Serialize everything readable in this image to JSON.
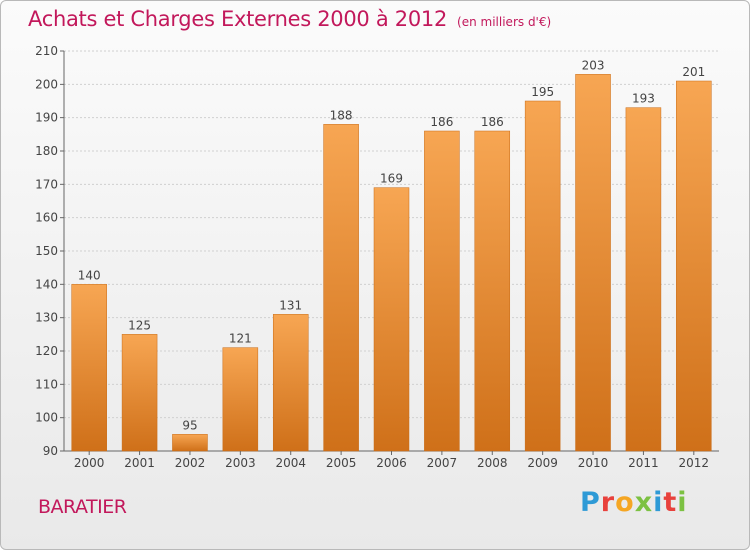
{
  "title": "Achats et Charges Externes 2000 à 2012",
  "unit": "(en milliers d'€)",
  "location": "BARATIER",
  "brand": {
    "text": "Proxiti",
    "letter_colors": [
      "#2e9ad6",
      "#e8413c",
      "#f5a623",
      "#7cc142",
      "#2e9ad6",
      "#e8413c",
      "#7cc142"
    ]
  },
  "colors": {
    "bar_top": "#f7a653",
    "bar_bottom": "#cf7019",
    "title": "#c2185b"
  },
  "chart_data": {
    "type": "bar",
    "categories": [
      "2000",
      "2001",
      "2002",
      "2003",
      "2004",
      "2005",
      "2006",
      "2007",
      "2008",
      "2009",
      "2010",
      "2011",
      "2012"
    ],
    "values": [
      140,
      125,
      95,
      121,
      131,
      188,
      169,
      186,
      186,
      195,
      203,
      193,
      201
    ],
    "data_labels": [
      "140",
      "125",
      "95",
      "121",
      "131",
      "188",
      "169",
      "186",
      "186",
      "195",
      "203",
      "193",
      "201"
    ],
    "y_ticks": [
      90,
      100,
      110,
      120,
      130,
      140,
      150,
      160,
      170,
      180,
      190,
      200,
      210
    ],
    "ylim": [
      90,
      210
    ],
    "grid": true
  }
}
